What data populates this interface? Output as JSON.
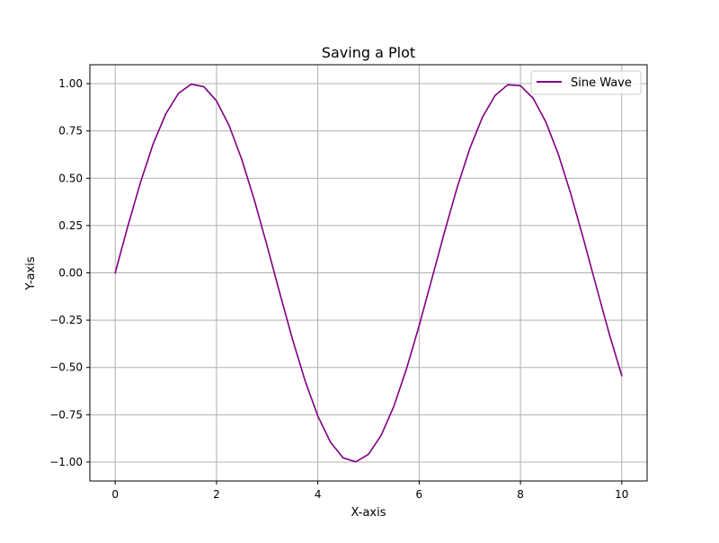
{
  "chart_data": {
    "type": "line",
    "title": "Saving a Plot",
    "xlabel": "X-axis",
    "ylabel": "Y-axis",
    "xlim": [
      -0.5,
      10.5
    ],
    "ylim": [
      -1.1,
      1.1
    ],
    "xticks": [
      0,
      2,
      4,
      6,
      8,
      10
    ],
    "xtick_labels": [
      "0",
      "2",
      "4",
      "6",
      "8",
      "10"
    ],
    "yticks": [
      -1.0,
      -0.75,
      -0.5,
      -0.25,
      0.0,
      0.25,
      0.5,
      0.75,
      1.0
    ],
    "ytick_labels": [
      "−1.00",
      "−0.75",
      "−0.50",
      "−0.25",
      "0.00",
      "0.25",
      "0.50",
      "0.75",
      "1.00"
    ],
    "grid": true,
    "legend_position": "top-right",
    "series": [
      {
        "name": "Sine Wave",
        "color": "#800080",
        "x": [
          0,
          0.25,
          0.5,
          0.75,
          1,
          1.25,
          1.5,
          1.75,
          2,
          2.25,
          2.5,
          2.75,
          3,
          3.25,
          3.5,
          3.75,
          4,
          4.25,
          4.5,
          4.75,
          5,
          5.25,
          5.5,
          5.75,
          6,
          6.25,
          6.5,
          6.75,
          7,
          7.25,
          7.5,
          7.75,
          8,
          8.25,
          8.5,
          8.75,
          9,
          9.25,
          9.5,
          9.75,
          10
        ],
        "y": [
          0.0,
          0.247,
          0.479,
          0.682,
          0.841,
          0.949,
          0.997,
          0.984,
          0.909,
          0.778,
          0.598,
          0.382,
          0.141,
          -0.108,
          -0.351,
          -0.572,
          -0.757,
          -0.895,
          -0.978,
          -0.999,
          -0.959,
          -0.859,
          -0.706,
          -0.508,
          -0.279,
          -0.033,
          0.215,
          0.451,
          0.657,
          0.823,
          0.938,
          0.994,
          0.989,
          0.923,
          0.798,
          0.625,
          0.412,
          0.173,
          -0.075,
          -0.32,
          -0.544
        ]
      }
    ]
  }
}
